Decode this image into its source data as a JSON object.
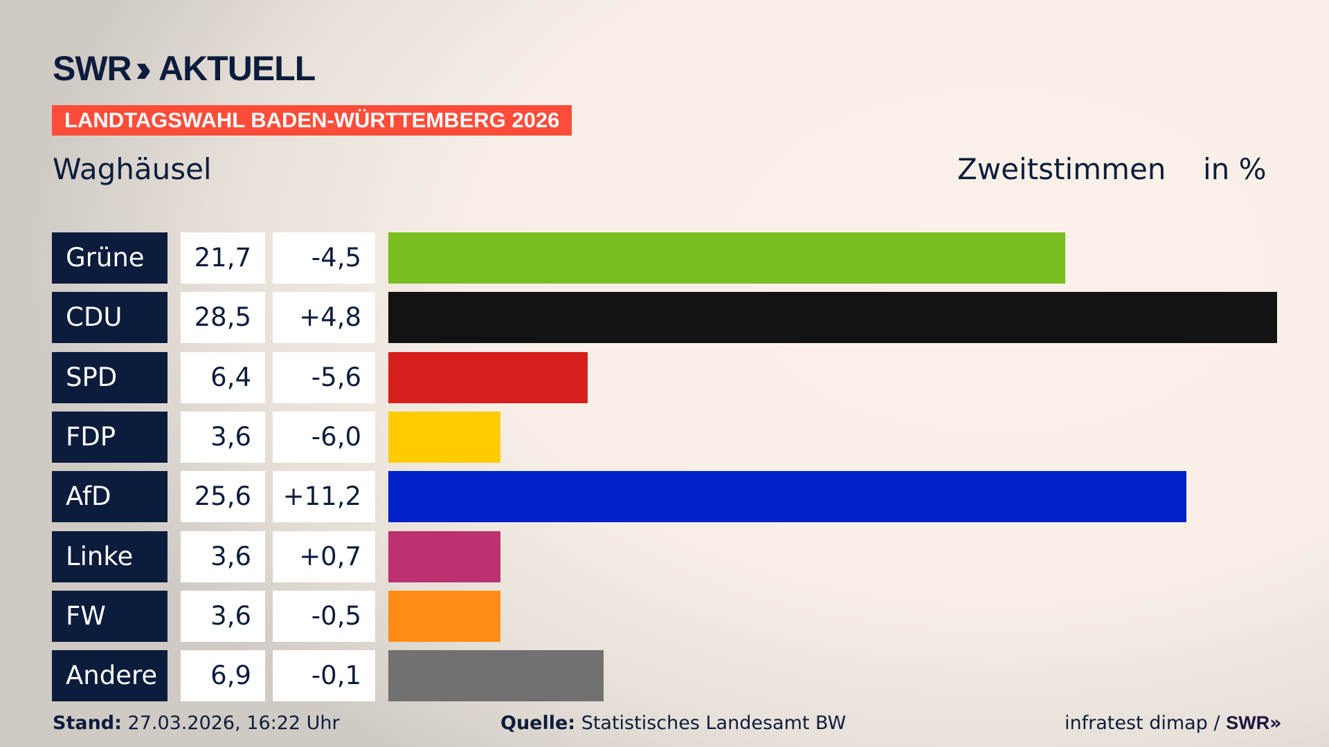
{
  "header": {
    "logo": "SWR",
    "logo_suffix": "AKTUELL",
    "banner": "LANDTAGSWAHL BADEN-WÜRTTEMBERG 2026",
    "place": "Waghäusel",
    "vote_type": "Zweitstimmen",
    "unit": "in %"
  },
  "chart_data": {
    "type": "bar",
    "orientation": "horizontal",
    "xlim": [
      0,
      28.5
    ],
    "categories": [
      "Grüne",
      "CDU",
      "SPD",
      "FDP",
      "AfD",
      "Linke",
      "FW",
      "Andere"
    ],
    "values": [
      21.7,
      28.5,
      6.4,
      3.6,
      25.6,
      3.6,
      3.6,
      6.9
    ],
    "values_label": [
      "21,7",
      "28,5",
      "6,4",
      "3,6",
      "25,6",
      "3,6",
      "3,6",
      "6,9"
    ],
    "diff_label": [
      "-4,5",
      "+4,8",
      "-5,6",
      "-6,0",
      "+11,2",
      "+0,7",
      "-0,5",
      "-0,1"
    ],
    "colors": [
      "#78be20",
      "#131313",
      "#d7201e",
      "#ffcc00",
      "#0021c8",
      "#bc3170",
      "#ff8c17",
      "#717171"
    ]
  },
  "footer": {
    "stand_label": "Stand:",
    "stand": "27.03.2026, 16:22 Uhr",
    "source_label": "Quelle:",
    "source": "Statistisches Landesamt BW",
    "credit": "infratest dimap /",
    "credit_logo": "SWR"
  }
}
